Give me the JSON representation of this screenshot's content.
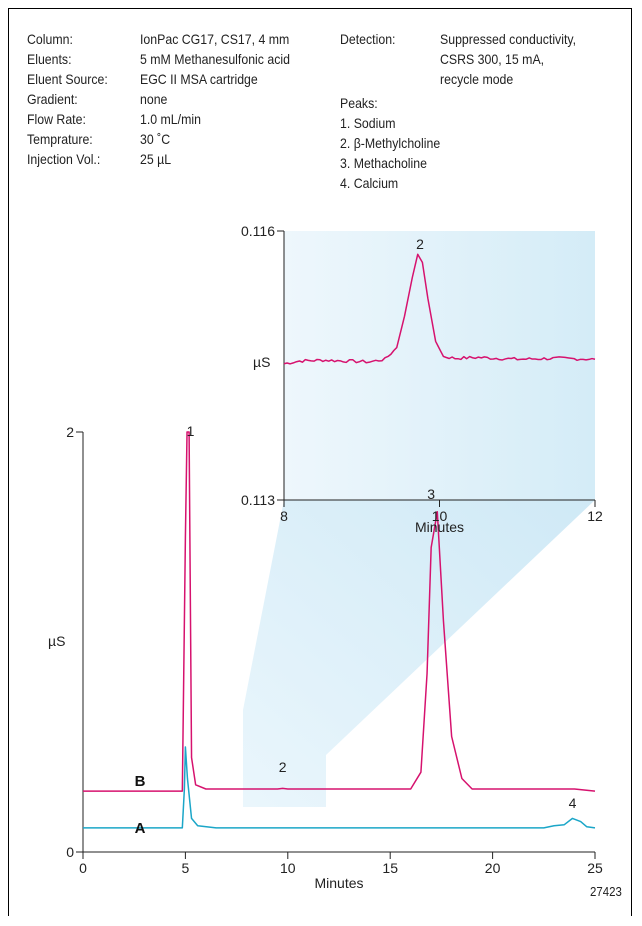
{
  "conditions": [
    {
      "label": "Column:",
      "value": "IonPac CG17, CS17, 4 mm"
    },
    {
      "label": "Eluents:",
      "value": "5 mM Methanesulfonic acid"
    },
    {
      "label": "Eluent Source:",
      "value": "EGC II MSA cartridge"
    },
    {
      "label": "Gradient:",
      "value": "none"
    },
    {
      "label": "Flow Rate:",
      "value": "1.0 mL/min"
    },
    {
      "label": "Temprature:",
      "value": "30 ˚C"
    },
    {
      "label": "Injection Vol.:",
      "value": "25 µL"
    }
  ],
  "detection": {
    "label": "Detection:",
    "lines": [
      "Suppressed conductivity,",
      "CSRS 300, 15 mA,",
      "recycle mode"
    ]
  },
  "peaks": {
    "label": "Peaks:",
    "items": [
      "1. Sodium",
      "2. β-Methylcholine",
      "3. Methacholine",
      "4. Calcium"
    ]
  },
  "figure_id": "27423",
  "colors": {
    "trace_B": "#d6126e",
    "trace_A": "#1ba6c8",
    "zoom_fill": "#d4ecf7"
  },
  "chart_data": [
    {
      "type": "line",
      "xlabel": "Minutes",
      "ylabel": "µS",
      "xlim": [
        0,
        25
      ],
      "ylim": [
        0,
        2
      ],
      "xticks": [
        "0",
        "5",
        "10",
        "15",
        "20",
        "25"
      ],
      "yticks": [
        "0",
        "2"
      ],
      "series": [
        {
          "name": "B",
          "x": [
            0,
            4.85,
            5.0,
            5.08,
            5.18,
            5.3,
            5.5,
            6.0,
            9.5,
            9.75,
            10.0,
            16.0,
            16.5,
            16.8,
            17.0,
            17.3,
            17.6,
            18.0,
            18.5,
            19.0,
            23.0,
            24.0,
            25.0
          ],
          "y": [
            0.29,
            0.29,
            1.5,
            2.0,
            2.0,
            0.45,
            0.32,
            0.3,
            0.3,
            0.303,
            0.3,
            0.3,
            0.38,
            0.85,
            1.45,
            1.62,
            1.1,
            0.55,
            0.35,
            0.3,
            0.3,
            0.3,
            0.29
          ]
        },
        {
          "name": "A",
          "x": [
            0,
            4.85,
            4.95,
            5.0,
            5.1,
            5.3,
            5.6,
            6.5,
            22.5,
            23.0,
            23.5,
            23.9,
            24.3,
            24.6,
            25.0
          ],
          "y": [
            0.115,
            0.115,
            0.3,
            0.5,
            0.35,
            0.16,
            0.125,
            0.115,
            0.115,
            0.125,
            0.13,
            0.16,
            0.145,
            0.12,
            0.115
          ]
        }
      ],
      "series_labels": [
        "B",
        "A"
      ],
      "peak_labels": [
        {
          "label": "1",
          "x": 5.25,
          "y": 1.98
        },
        {
          "label": "2",
          "x": 9.75,
          "y": 0.38
        },
        {
          "label": "3",
          "x": 17.0,
          "y": 1.68
        },
        {
          "label": "4",
          "x": 23.9,
          "y": 0.21
        }
      ]
    },
    {
      "type": "line",
      "xlabel": "Minutes",
      "ylabel": "µS",
      "xlim": [
        8,
        12
      ],
      "ylim": [
        0.113,
        0.116
      ],
      "xticks": [
        "8",
        "10",
        "12"
      ],
      "yticks": [
        "0.113",
        "0.116"
      ],
      "series": [
        {
          "name": "B",
          "x": [
            8.0,
            8.2,
            8.5,
            8.8,
            9.1,
            9.3,
            9.45,
            9.55,
            9.65,
            9.72,
            9.78,
            9.85,
            9.95,
            10.05,
            10.2,
            10.5,
            11.0,
            11.5,
            12.0
          ],
          "y": [
            0.11452,
            0.11455,
            0.11456,
            0.11455,
            0.11454,
            0.11457,
            0.1147,
            0.11505,
            0.11548,
            0.11574,
            0.11565,
            0.11525,
            0.11477,
            0.1146,
            0.11458,
            0.11459,
            0.11457,
            0.11458,
            0.11457
          ]
        }
      ],
      "peak_labels": [
        {
          "label": "2",
          "x": 9.75,
          "y": 0.1158
        }
      ]
    }
  ]
}
